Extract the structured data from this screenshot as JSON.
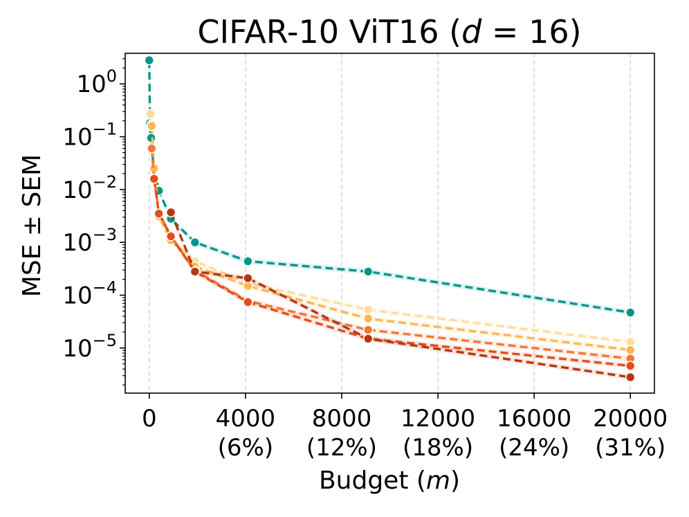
{
  "chart_data": {
    "type": "line",
    "title": "CIFAR-10 ViT16 (",
    "title_math_var": "d",
    "title_math_rest": " = 16)",
    "xlabel": "Budget (",
    "xlabel_var": "m",
    "xlabel_end": ")",
    "ylabel": "MSE ± SEM",
    "xlim": [
      -1000,
      21000
    ],
    "ylim": [
      1.4e-06,
      3.8
    ],
    "yscale": "log",
    "grid": "x-dashed",
    "x_ticks": [
      {
        "value": 0,
        "label": "0",
        "sub": ""
      },
      {
        "value": 4000,
        "label": "4000",
        "sub": "(6%)"
      },
      {
        "value": 8000,
        "label": "8000",
        "sub": "(12%)"
      },
      {
        "value": 12000,
        "label": "12000",
        "sub": "(18%)"
      },
      {
        "value": 16000,
        "label": "16000",
        "sub": "(24%)"
      },
      {
        "value": 20000,
        "label": "20000",
        "sub": "(31%)"
      }
    ],
    "y_ticks": [
      {
        "value": 1,
        "base": "10",
        "exp": "0"
      },
      {
        "value": 0.1,
        "base": "10",
        "exp": "−1"
      },
      {
        "value": 0.01,
        "base": "10",
        "exp": "−2"
      },
      {
        "value": 0.001,
        "base": "10",
        "exp": "−3"
      },
      {
        "value": 0.0001,
        "base": "10",
        "exp": "−4"
      },
      {
        "value": 1e-05,
        "base": "10",
        "exp": "−5"
      }
    ],
    "series": [
      {
        "color": "#009688",
        "x": [
          0,
          30,
          80,
          180,
          400,
          900,
          1900,
          4100,
          9100,
          20000
        ],
        "y": [
          2.8,
          0.18,
          0.095,
          0.026,
          0.0095,
          0.0028,
          0.001,
          0.00044,
          0.00028,
          4.7e-05
        ]
      },
      {
        "color": "#FDDDA0",
        "x": [
          50,
          100,
          200,
          400,
          900,
          1900,
          4100,
          9100,
          20000
        ],
        "y": [
          0.27,
          0.17,
          0.027,
          0.0032,
          0.0012,
          0.00044,
          0.00017,
          5.3e-05,
          1.3e-05
        ]
      },
      {
        "color": "#FDB750",
        "x": [
          100,
          200,
          400,
          900,
          1900,
          4100,
          9100,
          20000
        ],
        "y": [
          0.16,
          0.025,
          0.0031,
          0.0011,
          0.00035,
          0.00015,
          3.6e-05,
          9.2e-06
        ]
      },
      {
        "color": "#F37735",
        "x": [
          100,
          200,
          400,
          900,
          1900,
          4100,
          9100,
          20000
        ],
        "y": [
          0.06,
          0.016,
          0.0037,
          0.0013,
          0.00029,
          7.8e-05,
          2.2e-05,
          6.3e-06
        ]
      },
      {
        "color": "#E04E1E",
        "x": [
          200,
          400,
          900,
          1900,
          4100,
          9100,
          20000
        ],
        "y": [
          0.016,
          0.0035,
          0.0013,
          0.00028,
          7.4e-05,
          1.5e-05,
          4.6e-06
        ]
      },
      {
        "color": "#B7360F",
        "x": [
          900,
          1900,
          4100,
          9100,
          20000
        ],
        "y": [
          0.0037,
          0.00028,
          0.00021,
          1.5e-05,
          2.8e-06
        ]
      }
    ]
  }
}
